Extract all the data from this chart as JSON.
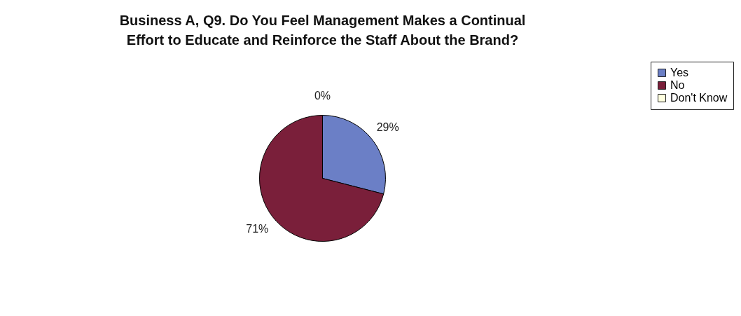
{
  "chart_data": {
    "type": "pie",
    "title": "Business A, Q9. Do You Feel Management Makes a Continual\nEffort to Educate and Reinforce the Staff About the Brand?",
    "categories": [
      "Yes",
      "No",
      "Don't Know"
    ],
    "values": [
      29,
      71,
      0
    ],
    "colors": [
      "#6b7fc6",
      "#7a1f3a",
      "#ffffe0"
    ],
    "value_labels": [
      "29%",
      "71%",
      "0%"
    ],
    "legend": "right"
  }
}
